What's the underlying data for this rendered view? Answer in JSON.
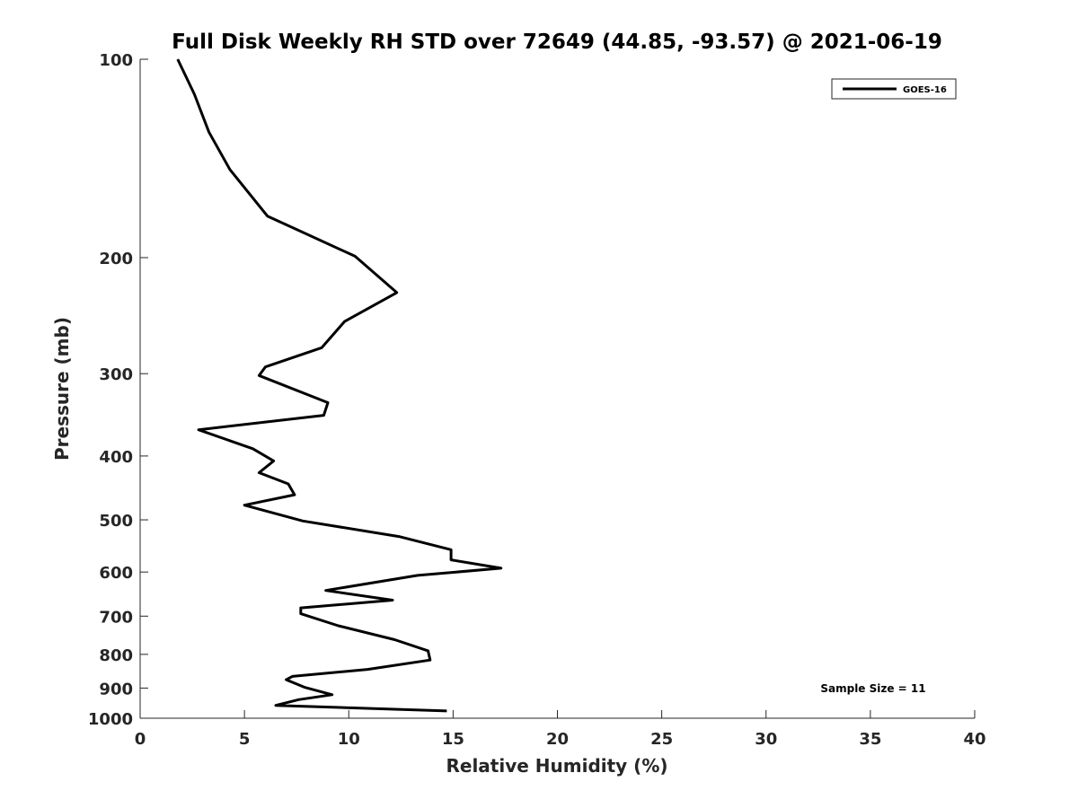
{
  "chart_data": {
    "type": "line",
    "title": "Full Disk Weekly RH STD over 72649 (44.85, -93.57) @ 2021-06-19",
    "xlabel": "Relative Humidity (%)",
    "ylabel": "Pressure (mb)",
    "xlim": [
      0,
      40
    ],
    "ylim": [
      100,
      1000
    ],
    "yscale": "log",
    "y_reversed": true,
    "xticks": [
      0,
      5,
      10,
      15,
      20,
      25,
      30,
      35,
      40
    ],
    "yticks": [
      100,
      200,
      300,
      400,
      500,
      600,
      700,
      800,
      900,
      1000
    ],
    "grid": false,
    "legend": {
      "placement": "top-right",
      "entries": [
        "GOES-16"
      ]
    },
    "annotation": "Sample Size = 11",
    "series": [
      {
        "name": "GOES-16",
        "color": "#000000",
        "x": [
          1.8,
          2.6,
          3.3,
          4.3,
          6.1,
          10.3,
          12.3,
          9.8,
          8.7,
          6.0,
          5.7,
          9.0,
          8.8,
          2.8,
          5.4,
          6.4,
          5.7,
          7.1,
          7.4,
          5.0,
          7.8,
          12.4,
          14.9,
          14.9,
          17.3,
          13.3,
          8.9,
          12.1,
          7.7,
          7.7,
          9.5,
          12.2,
          13.8,
          13.9,
          10.9,
          7.3,
          7.0,
          7.9,
          9.2,
          7.6,
          6.5,
          14.7
        ],
        "y": [
          100,
          113,
          129,
          147,
          173,
          199,
          226,
          250,
          274,
          293,
          302,
          332,
          347,
          365,
          390,
          407,
          424,
          441,
          458,
          475,
          502,
          530,
          555,
          575,
          592,
          607,
          640,
          662,
          680,
          694,
          724,
          760,
          790,
          816,
          843,
          864,
          874,
          898,
          921,
          937,
          956,
          975
        ]
      }
    ]
  }
}
